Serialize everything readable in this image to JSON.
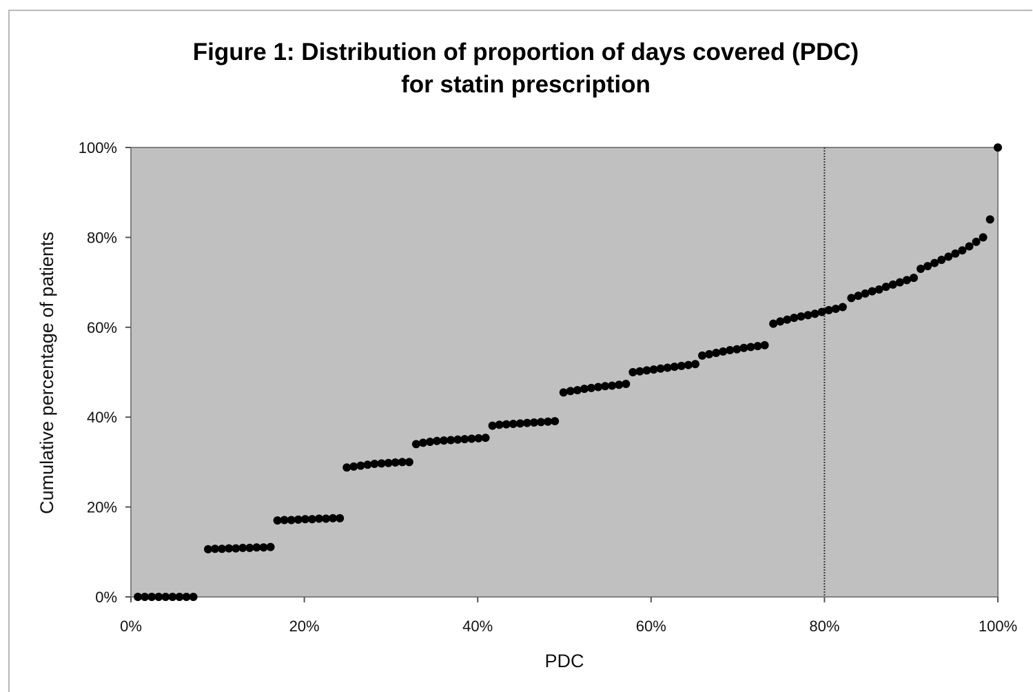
{
  "chart_data": {
    "type": "scatter",
    "title_lines": [
      "Figure 1: Distribution of proportion of days covered (PDC)",
      "for statin prescription"
    ],
    "xlabel": "PDC",
    "ylabel": "Cumulative percentage of patients",
    "xlim": [
      0,
      100
    ],
    "ylim": [
      0,
      100
    ],
    "x_ticks": [
      "0%",
      "20%",
      "40%",
      "60%",
      "80%",
      "100%"
    ],
    "y_ticks": [
      "0%",
      "20%",
      "40%",
      "60%",
      "80%",
      "100%"
    ],
    "grid": false,
    "legend": "none",
    "plot_background": "#c0c0c0",
    "marker_color": "#000000",
    "reference_line": {
      "x": 80,
      "style": "dotted"
    },
    "series": [
      {
        "points": [
          [
            0.8,
            0
          ],
          [
            1.6,
            0
          ],
          [
            2.4,
            0
          ],
          [
            3.2,
            0
          ],
          [
            4.0,
            0
          ],
          [
            4.8,
            0
          ],
          [
            5.6,
            0
          ],
          [
            6.4,
            0
          ],
          [
            7.2,
            0
          ],
          [
            8.9,
            10.6
          ],
          [
            9.7,
            10.7
          ],
          [
            10.5,
            10.7
          ],
          [
            11.3,
            10.8
          ],
          [
            12.1,
            10.8
          ],
          [
            12.9,
            10.9
          ],
          [
            13.7,
            10.9
          ],
          [
            14.5,
            11.0
          ],
          [
            15.3,
            11.0
          ],
          [
            16.1,
            11.1
          ],
          [
            16.9,
            17.0
          ],
          [
            17.7,
            17.1
          ],
          [
            18.5,
            17.1
          ],
          [
            19.3,
            17.2
          ],
          [
            20.1,
            17.3
          ],
          [
            20.9,
            17.3
          ],
          [
            21.7,
            17.4
          ],
          [
            22.5,
            17.4
          ],
          [
            23.3,
            17.5
          ],
          [
            24.1,
            17.5
          ],
          [
            24.9,
            28.8
          ],
          [
            25.7,
            29.0
          ],
          [
            26.5,
            29.2
          ],
          [
            27.3,
            29.4
          ],
          [
            28.1,
            29.6
          ],
          [
            28.9,
            29.7
          ],
          [
            29.7,
            29.8
          ],
          [
            30.5,
            29.9
          ],
          [
            31.3,
            30.0
          ],
          [
            32.1,
            30.0
          ],
          [
            32.9,
            34.0
          ],
          [
            33.7,
            34.3
          ],
          [
            34.5,
            34.5
          ],
          [
            35.3,
            34.7
          ],
          [
            36.1,
            34.8
          ],
          [
            36.9,
            34.9
          ],
          [
            37.7,
            35.0
          ],
          [
            38.5,
            35.1
          ],
          [
            39.3,
            35.2
          ],
          [
            40.1,
            35.3
          ],
          [
            40.9,
            35.4
          ],
          [
            41.7,
            38.1
          ],
          [
            42.5,
            38.3
          ],
          [
            43.3,
            38.4
          ],
          [
            44.1,
            38.5
          ],
          [
            44.9,
            38.6
          ],
          [
            45.7,
            38.7
          ],
          [
            46.5,
            38.8
          ],
          [
            47.3,
            38.9
          ],
          [
            48.1,
            39.0
          ],
          [
            48.9,
            39.1
          ],
          [
            49.9,
            45.5
          ],
          [
            50.7,
            45.8
          ],
          [
            51.5,
            46.0
          ],
          [
            52.3,
            46.3
          ],
          [
            53.1,
            46.5
          ],
          [
            53.9,
            46.7
          ],
          [
            54.7,
            46.9
          ],
          [
            55.5,
            47.0
          ],
          [
            56.3,
            47.2
          ],
          [
            57.1,
            47.4
          ],
          [
            57.9,
            50.0
          ],
          [
            58.7,
            50.2
          ],
          [
            59.5,
            50.4
          ],
          [
            60.3,
            50.6
          ],
          [
            61.1,
            50.8
          ],
          [
            61.9,
            51.0
          ],
          [
            62.7,
            51.2
          ],
          [
            63.5,
            51.4
          ],
          [
            64.3,
            51.6
          ],
          [
            65.1,
            51.8
          ],
          [
            65.9,
            53.7
          ],
          [
            66.7,
            54.0
          ],
          [
            67.5,
            54.3
          ],
          [
            68.3,
            54.6
          ],
          [
            69.1,
            54.9
          ],
          [
            69.9,
            55.1
          ],
          [
            70.7,
            55.4
          ],
          [
            71.5,
            55.6
          ],
          [
            72.3,
            55.8
          ],
          [
            73.1,
            56.0
          ],
          [
            74.1,
            60.8
          ],
          [
            74.9,
            61.3
          ],
          [
            75.7,
            61.7
          ],
          [
            76.5,
            62.1
          ],
          [
            77.3,
            62.4
          ],
          [
            78.1,
            62.7
          ],
          [
            78.9,
            63.0
          ],
          [
            79.7,
            63.4
          ],
          [
            80.5,
            63.8
          ],
          [
            81.3,
            64.1
          ],
          [
            82.1,
            64.5
          ],
          [
            83.1,
            66.5
          ],
          [
            83.9,
            67.0
          ],
          [
            84.7,
            67.5
          ],
          [
            85.5,
            68.0
          ],
          [
            86.3,
            68.4
          ],
          [
            87.1,
            69.0
          ],
          [
            87.9,
            69.5
          ],
          [
            88.7,
            70.0
          ],
          [
            89.5,
            70.5
          ],
          [
            90.3,
            71.0
          ],
          [
            91.1,
            73.0
          ],
          [
            91.9,
            73.6
          ],
          [
            92.7,
            74.3
          ],
          [
            93.5,
            75.0
          ],
          [
            94.3,
            75.7
          ],
          [
            95.1,
            76.4
          ],
          [
            95.9,
            77.1
          ],
          [
            96.7,
            78.0
          ],
          [
            97.5,
            79.0
          ],
          [
            98.3,
            80.0
          ],
          [
            99.1,
            84.0
          ],
          [
            100,
            100
          ]
        ]
      }
    ]
  }
}
